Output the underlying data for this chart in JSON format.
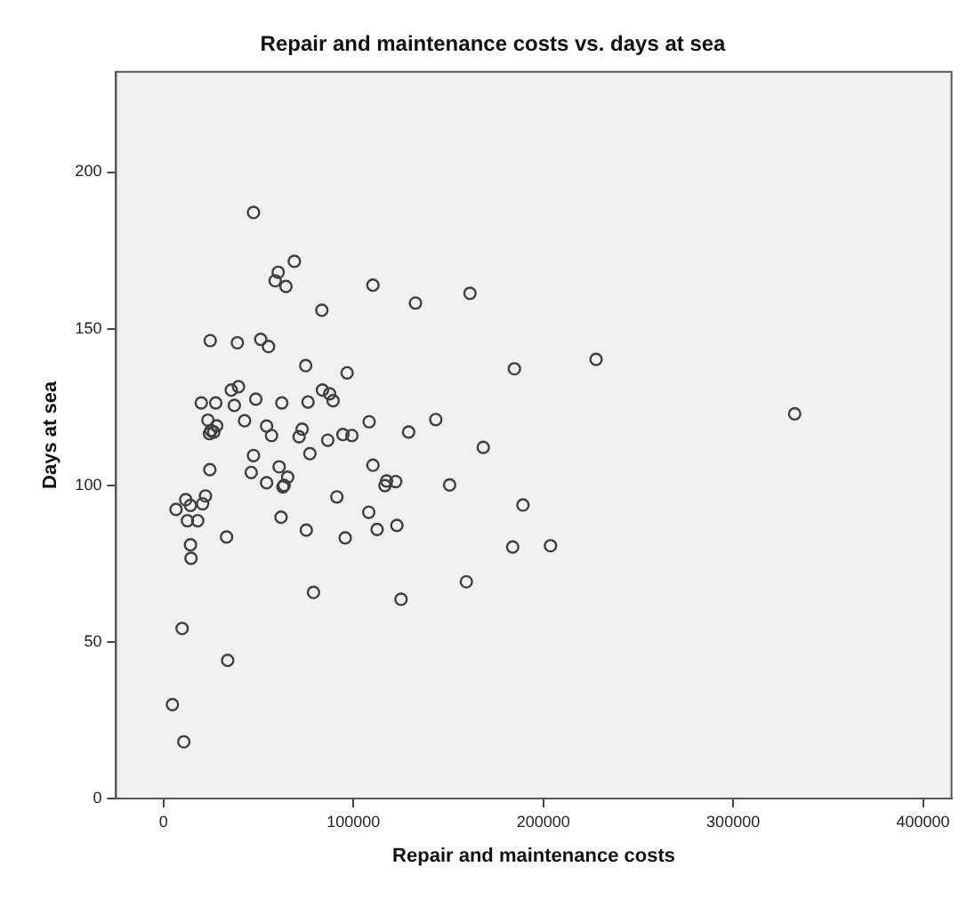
{
  "chart_data": {
    "type": "scatter",
    "title": "Repair and maintenance costs vs. days at sea",
    "xlabel": "Repair and maintenance costs",
    "ylabel": "Days at sea",
    "series": [
      {
        "color": "#404040",
        "x": [
          47400,
          68900,
          60400,
          58800,
          64500,
          83400,
          24600,
          38900,
          51200,
          55300,
          74900,
          35700,
          39500,
          83700,
          87500,
          89300,
          19900,
          27500,
          37300,
          48600,
          62300,
          76100,
          23400,
          42700,
          54300,
          56900,
          73000,
          71400,
          86500,
          77100,
          25000,
          26500,
          28000,
          24200,
          24400,
          47400,
          46200,
          54300,
          60900,
          65400,
          62900,
          63500,
          22100,
          11700,
          6600,
          14200,
          20600,
          12600,
          18000,
          61900,
          14200,
          14500,
          33200,
          75200,
          79000,
          9800,
          33800,
          4700,
          10700,
          110300,
          132700,
          161400,
          184800,
          96700,
          108300,
          143400,
          129100,
          94500,
          99200,
          168400,
          110300,
          117500,
          116600,
          122300,
          150700,
          91300,
          189300,
          108100,
          112500,
          122900,
          95700,
          183900,
          203800,
          159500,
          125100,
          227800,
          332400
        ],
        "values": [
          187.1,
          171.5,
          168,
          165.3,
          163.5,
          155.9,
          146.2,
          145.5,
          146.6,
          144.3,
          138.2,
          130.4,
          131.5,
          130.4,
          129.2,
          127,
          126.3,
          126.3,
          125.5,
          127.5,
          126.3,
          126.6,
          120.8,
          120.6,
          118.9,
          115.9,
          117.9,
          115.5,
          114.4,
          110.1,
          117.5,
          117,
          119,
          116.5,
          105,
          109.5,
          104.1,
          100.8,
          105.9,
          102.6,
          99.5,
          100,
          96.6,
          95.4,
          92.3,
          93.6,
          94.1,
          88.7,
          88.7,
          89.8,
          81,
          76.7,
          83.5,
          85.7,
          65.8,
          54.3,
          44.1,
          30,
          18.1,
          163.9,
          158.2,
          161.3,
          137.2,
          135.9,
          120.3,
          121,
          117,
          116.2,
          115.9,
          112.1,
          106.4,
          101.4,
          99.9,
          101.2,
          100.1,
          96.3,
          93.7,
          91.4,
          85.9,
          87.2,
          83.2,
          80.3,
          80.7,
          69.2,
          63.6,
          140.2,
          122.8
        ]
      }
    ],
    "xlim": [
      -25000,
      415000
    ],
    "ylim": [
      0,
      232
    ],
    "xticks": [
      0,
      100000,
      200000,
      300000,
      400000
    ],
    "yticks": [
      0,
      50,
      100,
      150,
      200
    ],
    "grid": false,
    "legend": false,
    "marker": "circle"
  }
}
